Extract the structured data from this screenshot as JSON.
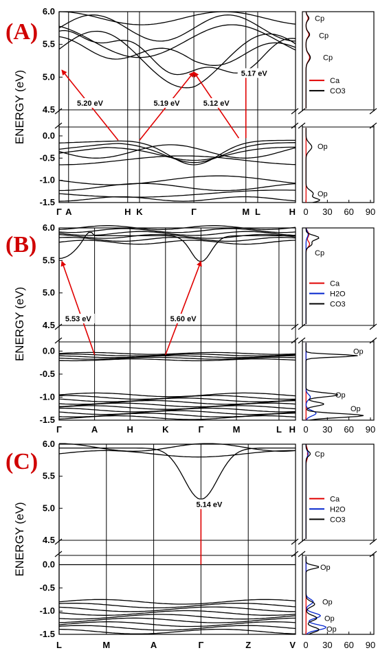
{
  "chart_data": [
    {
      "type": "line",
      "panel_label": "(A)",
      "ylabel": "ENERGY (eV)",
      "y_ticks": [
        "6.0",
        "5.5",
        "5.0",
        "4.5",
        "0.0",
        "-0.5",
        "-1.0",
        "-1.5"
      ],
      "y_segments": {
        "upper": [
          4.5,
          6.0
        ],
        "lower": [
          -1.5,
          0.2
        ]
      },
      "kpoints": [
        {
          "label": "Γ",
          "pos": 0.0
        },
        {
          "label": "A",
          "pos": 0.04
        },
        {
          "label": "H",
          "pos": 0.29
        },
        {
          "label": "K",
          "pos": 0.34
        },
        {
          "label": "Γ",
          "pos": 0.57
        },
        {
          "label": "M",
          "pos": 0.79
        },
        {
          "label": "L",
          "pos": 0.84
        },
        {
          "label": "H",
          "pos": 1.0
        }
      ],
      "transitions": [
        {
          "label": "5.20 eV",
          "from": {
            "x": 0.25,
            "y": -0.1
          },
          "to": {
            "x": 0.0,
            "y": 5.17
          }
        },
        {
          "label": "5.19 eV",
          "from": {
            "x": 0.34,
            "y": -0.1
          },
          "to": {
            "x": 0.57,
            "y": 5.14
          }
        },
        {
          "label": "5.12 eV",
          "from": {
            "x": 0.76,
            "y": -0.05
          },
          "to": {
            "x": 0.57,
            "y": 5.14
          }
        },
        {
          "label": "5.17 eV",
          "from": {
            "x": 0.79,
            "y": -0.05
          },
          "to": {
            "x": 0.79,
            "y": 5.15
          }
        }
      ],
      "dos": {
        "x_ticks": [
          "0",
          "30",
          "60",
          "90"
        ],
        "legend": [
          {
            "name": "Ca",
            "color": "#e00000"
          },
          {
            "name": "CO3",
            "color": "#000000"
          }
        ],
        "orbital_labels": [
          {
            "text": "Cp",
            "y": 5.9
          },
          {
            "text": "Cp",
            "y": 5.64
          },
          {
            "text": "Cp",
            "y": 5.3
          },
          {
            "text": "Op",
            "y": -0.23
          },
          {
            "text": "Op",
            "y": -1.3
          }
        ]
      }
    },
    {
      "type": "line",
      "panel_label": "(B)",
      "ylabel": "ENERGY (eV)",
      "y_ticks": [
        "6.0",
        "5.5",
        "5.0",
        "4.5",
        "0.0",
        "-0.5",
        "-1.0",
        "-1.5"
      ],
      "y_segments": {
        "upper": [
          4.5,
          6.0
        ],
        "lower": [
          -1.5,
          0.2
        ]
      },
      "kpoints": [
        {
          "label": "Γ",
          "pos": 0.0
        },
        {
          "label": "A",
          "pos": 0.15
        },
        {
          "label": "H",
          "pos": 0.3
        },
        {
          "label": "K",
          "pos": 0.45
        },
        {
          "label": "Γ",
          "pos": 0.6
        },
        {
          "label": "M",
          "pos": 0.75
        },
        {
          "label": "L",
          "pos": 0.93
        },
        {
          "label": "H",
          "pos": 1.0
        }
      ],
      "transitions": [
        {
          "label": "5.53 eV",
          "from": {
            "x": 0.15,
            "y": -0.08
          },
          "to": {
            "x": 0.0,
            "y": 5.55
          }
        },
        {
          "label": "5.60 eV",
          "from": {
            "x": 0.45,
            "y": -0.08
          },
          "to": {
            "x": 0.6,
            "y": 5.55
          }
        }
      ],
      "dos": {
        "x_ticks": [
          "0",
          "30",
          "60",
          "90"
        ],
        "legend": [
          {
            "name": "Ca",
            "color": "#e00000"
          },
          {
            "name": "H2O",
            "color": "#0022cc"
          },
          {
            "name": "CO3",
            "color": "#000000"
          }
        ],
        "orbital_labels": [
          {
            "text": "Cp",
            "y": 5.62
          },
          {
            "text": "Op",
            "y": 0.0
          },
          {
            "text": "Op",
            "y": -0.95
          },
          {
            "text": "Op",
            "y": -1.25
          }
        ]
      }
    },
    {
      "type": "line",
      "panel_label": "(C)",
      "ylabel": "ENERGY (eV)",
      "y_ticks": [
        "6.0",
        "5.5",
        "5.0",
        "4.5",
        "0.0",
        "-0.5",
        "-1.0",
        "-1.5"
      ],
      "y_segments": {
        "upper": [
          4.5,
          6.0
        ],
        "lower": [
          -1.5,
          0.2
        ]
      },
      "kpoints": [
        {
          "label": "L",
          "pos": 0.0
        },
        {
          "label": "M",
          "pos": 0.2
        },
        {
          "label": "A",
          "pos": 0.4
        },
        {
          "label": "Γ",
          "pos": 0.6
        },
        {
          "label": "Z",
          "pos": 0.8
        },
        {
          "label": "V",
          "pos": 1.0
        }
      ],
      "transitions": [
        {
          "label": "5.14 eV",
          "from": {
            "x": 0.6,
            "y": 0.0
          },
          "to": {
            "x": 0.6,
            "y": 5.14
          }
        }
      ],
      "dos": {
        "x_ticks": [
          "0",
          "30",
          "60",
          "90"
        ],
        "legend": [
          {
            "name": "Ca",
            "color": "#e00000"
          },
          {
            "name": "H2O",
            "color": "#0022cc"
          },
          {
            "name": "CO3",
            "color": "#000000"
          }
        ],
        "orbital_labels": [
          {
            "text": "Cp",
            "y": 5.85
          },
          {
            "text": "Op",
            "y": -0.05
          },
          {
            "text": "Op",
            "y": -0.8
          },
          {
            "text": "Op",
            "y": -1.15
          },
          {
            "text": "Op",
            "y": -1.38
          }
        ]
      }
    }
  ]
}
